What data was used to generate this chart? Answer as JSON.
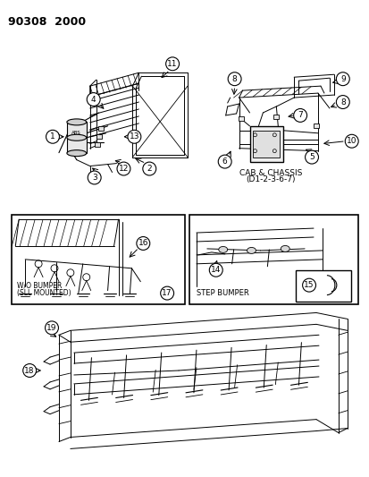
{
  "title": "90308  2000",
  "bg_color": "#ffffff",
  "text_color": "#000000",
  "figsize": [
    4.14,
    5.33
  ],
  "dpi": 100,
  "labels": {
    "cab_chassis_1": "CAB & CHASSIS",
    "cab_chassis_2": "(D1-2-3-6-7)",
    "wo_bumper_1": "W/O BUMPER",
    "wo_bumper_2": "(SLL MOUNTED)",
    "step_bumper": "STEP BUMPER"
  },
  "callout_circle_r": 7.5,
  "callout_font": 6.5,
  "title_font": 9
}
